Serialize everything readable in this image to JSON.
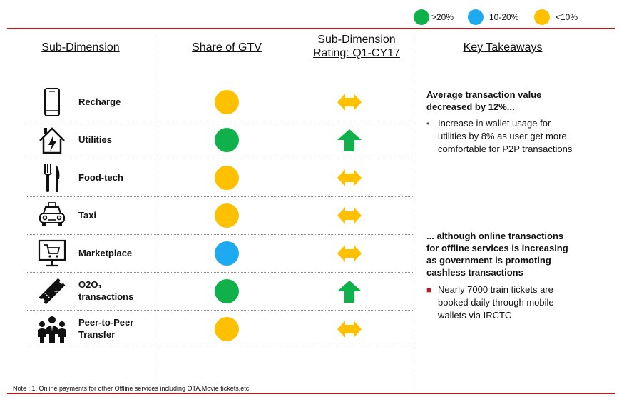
{
  "legend": [
    {
      "label": ">20%",
      "color": "#10b14b"
    },
    {
      "label": "10-20%",
      "color": "#1eaaf1"
    },
    {
      "label": "<10%",
      "color": "#ffc000"
    }
  ],
  "headers": {
    "sub_dimension": "Sub-Dimension",
    "share": "Share of GTV",
    "rating_line1": "Sub-Dimension",
    "rating_line2": "Rating: Q1-CY17",
    "takeaways": "Key Takeaways"
  },
  "rows": [
    {
      "icon": "phone-icon",
      "label_line1": "Recharge",
      "label_line2": "",
      "share_color": "#ffc000",
      "rating": "neutral",
      "rating_color": "#ffc000"
    },
    {
      "icon": "house-bolt-icon",
      "label_line1": "Utilities",
      "label_line2": "",
      "share_color": "#10b14b",
      "rating": "up",
      "rating_color": "#10b14b"
    },
    {
      "icon": "fork-knife-icon",
      "label_line1": "Food-tech",
      "label_line2": "",
      "share_color": "#ffc000",
      "rating": "neutral",
      "rating_color": "#ffc000"
    },
    {
      "icon": "taxi-icon",
      "label_line1": "Taxi",
      "label_line2": "",
      "share_color": "#ffc000",
      "rating": "neutral",
      "rating_color": "#ffc000"
    },
    {
      "icon": "cart-screen-icon",
      "label_line1": "Marketplace",
      "label_line2": "",
      "share_color": "#1eaaf1",
      "rating": "neutral",
      "rating_color": "#ffc000"
    },
    {
      "icon": "ticket-icon",
      "label_line1": "O2O₁",
      "label_line2": "transactions",
      "share_color": "#10b14b",
      "rating": "up",
      "rating_color": "#10b14b"
    },
    {
      "icon": "people-icon",
      "label_line1": "Peer-to-Peer",
      "label_line2": "Transfer",
      "share_color": "#ffc000",
      "rating": "neutral",
      "rating_color": "#ffc000"
    }
  ],
  "takeaways": {
    "block1_heading_l1": "Average transaction value",
    "block1_heading_l2": "decreased by 12%...",
    "block1_bullet_l1": "Increase in wallet usage for",
    "block1_bullet_l2": "utilities by 8% as user get more",
    "block1_bullet_l3": "comfortable for P2P transactions",
    "block2_heading_l1": "... although online transactions",
    "block2_heading_l2": "for offline services is increasing",
    "block2_heading_l3": "as government is promoting",
    "block2_heading_l4": "cashless transactions",
    "block2_bullet_l1": "Nearly 7000 train tickets are",
    "block2_bullet_l2": "booked daily through mobile",
    "block2_bullet_l3": "wallets via IRCTC"
  },
  "note": "Note : 1. Online payments for other Offline services including OTA,Movie tickets,etc."
}
